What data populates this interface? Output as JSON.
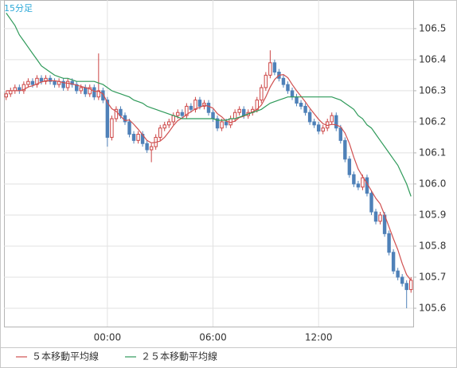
{
  "chart_data": {
    "type": "candlestick",
    "title": "15分足",
    "categories": [
      null,
      null,
      null,
      null,
      null,
      null,
      null,
      null,
      null,
      null,
      null,
      null,
      null,
      null,
      null,
      null,
      null,
      null,
      null,
      null,
      null,
      null,
      null,
      "00:00",
      null,
      null,
      null,
      null,
      null,
      null,
      null,
      null,
      null,
      null,
      null,
      null,
      null,
      null,
      null,
      null,
      null,
      null,
      null,
      null,
      null,
      null,
      null,
      "06:00",
      null,
      null,
      null,
      null,
      null,
      null,
      null,
      null,
      null,
      null,
      null,
      null,
      null,
      null,
      null,
      null,
      null,
      null,
      null,
      null,
      null,
      null,
      null,
      "12:00",
      null,
      null,
      null,
      null,
      null,
      null,
      null,
      null,
      null,
      null,
      null,
      null,
      null,
      null,
      null,
      null,
      null,
      null,
      null,
      null,
      null
    ],
    "open": [
      106.28,
      106.29,
      106.3,
      106.31,
      106.3,
      106.32,
      106.33,
      106.32,
      106.34,
      106.33,
      106.34,
      106.33,
      106.32,
      106.33,
      106.31,
      106.33,
      106.32,
      106.3,
      106.31,
      106.29,
      106.31,
      106.28,
      106.3,
      106.27,
      106.15,
      106.21,
      106.24,
      106.22,
      106.2,
      106.16,
      106.14,
      106.16,
      106.13,
      106.11,
      106.12,
      106.15,
      106.18,
      106.19,
      106.2,
      106.22,
      106.23,
      106.22,
      106.25,
      106.24,
      106.27,
      106.25,
      106.26,
      106.23,
      106.21,
      106.18,
      106.2,
      106.19,
      106.21,
      106.23,
      106.24,
      106.22,
      106.23,
      106.24,
      106.27,
      106.31,
      106.35,
      106.39,
      106.36,
      106.34,
      106.32,
      106.3,
      106.28,
      106.26,
      106.25,
      106.23,
      106.2,
      106.19,
      106.17,
      106.18,
      106.2,
      106.22,
      106.18,
      106.14,
      106.08,
      106.03,
      106.0,
      105.99,
      106.02,
      105.97,
      105.91,
      105.88,
      105.9,
      105.84,
      105.78,
      105.72,
      105.7,
      105.68,
      105.66
    ],
    "high": [
      106.3,
      106.31,
      106.32,
      106.32,
      106.33,
      106.34,
      106.34,
      106.35,
      106.35,
      106.35,
      106.35,
      106.34,
      106.34,
      106.34,
      106.34,
      106.34,
      106.33,
      106.32,
      106.32,
      106.32,
      106.32,
      106.42,
      106.31,
      106.28,
      106.22,
      106.25,
      106.25,
      106.23,
      106.21,
      106.17,
      106.17,
      106.17,
      106.14,
      106.13,
      106.16,
      106.19,
      106.2,
      106.21,
      106.23,
      106.24,
      106.24,
      106.26,
      106.26,
      106.28,
      106.28,
      106.27,
      106.27,
      106.24,
      106.22,
      106.21,
      106.21,
      106.22,
      106.24,
      106.25,
      106.25,
      106.24,
      106.25,
      106.28,
      106.32,
      106.36,
      106.43,
      106.4,
      106.37,
      106.35,
      106.33,
      106.31,
      106.29,
      106.27,
      106.26,
      106.24,
      106.21,
      106.2,
      106.19,
      106.21,
      106.23,
      106.23,
      106.19,
      106.15,
      106.09,
      106.04,
      106.01,
      106.03,
      106.03,
      105.98,
      105.92,
      105.91,
      105.91,
      105.85,
      105.79,
      105.73,
      105.71,
      105.69,
      105.7
    ],
    "low": [
      106.27,
      106.28,
      106.29,
      106.29,
      106.29,
      106.31,
      106.31,
      106.31,
      106.32,
      106.32,
      106.32,
      106.31,
      106.31,
      106.3,
      106.3,
      106.31,
      106.29,
      106.29,
      106.28,
      106.28,
      106.27,
      106.27,
      106.26,
      106.12,
      106.14,
      106.2,
      106.21,
      106.19,
      106.15,
      106.13,
      106.13,
      106.12,
      106.1,
      106.07,
      106.11,
      106.14,
      106.17,
      106.18,
      106.19,
      106.21,
      106.21,
      106.21,
      106.23,
      106.23,
      106.24,
      106.24,
      106.22,
      106.2,
      106.17,
      106.17,
      106.18,
      106.18,
      106.2,
      106.22,
      106.21,
      106.21,
      106.22,
      106.23,
      106.26,
      106.3,
      106.34,
      106.35,
      106.33,
      106.31,
      106.29,
      106.27,
      106.25,
      106.24,
      106.22,
      106.19,
      106.18,
      106.16,
      106.16,
      106.17,
      106.19,
      106.17,
      106.13,
      106.07,
      106.02,
      105.99,
      105.98,
      105.98,
      105.96,
      105.9,
      105.87,
      105.87,
      105.83,
      105.77,
      105.71,
      105.69,
      105.67,
      105.6,
      105.65
    ],
    "close": [
      106.29,
      106.3,
      106.31,
      106.3,
      106.32,
      106.33,
      106.32,
      106.34,
      106.33,
      106.34,
      106.33,
      106.32,
      106.33,
      106.31,
      106.33,
      106.32,
      106.3,
      106.31,
      106.29,
      106.31,
      106.28,
      106.3,
      106.27,
      106.15,
      106.21,
      106.24,
      106.22,
      106.2,
      106.16,
      106.14,
      106.16,
      106.13,
      106.11,
      106.12,
      106.15,
      106.18,
      106.19,
      106.2,
      106.22,
      106.23,
      106.22,
      106.25,
      106.24,
      106.27,
      106.25,
      106.26,
      106.23,
      106.21,
      106.18,
      106.2,
      106.19,
      106.21,
      106.23,
      106.24,
      106.22,
      106.23,
      106.24,
      106.27,
      106.31,
      106.35,
      106.39,
      106.36,
      106.34,
      106.32,
      106.3,
      106.28,
      106.26,
      106.25,
      106.23,
      106.2,
      106.19,
      106.17,
      106.18,
      106.2,
      106.22,
      106.18,
      106.14,
      106.08,
      106.03,
      106.0,
      105.99,
      106.02,
      105.97,
      105.91,
      105.88,
      105.9,
      105.84,
      105.78,
      105.72,
      105.7,
      105.68,
      105.66,
      105.69
    ],
    "up_color": "#cc4444",
    "down_color": "#4f81b8",
    "series": [
      {
        "name": "５本移動平均線",
        "color": "#d05050",
        "values": [
          106.3,
          106.3,
          106.3,
          106.3,
          106.304,
          106.312,
          106.316,
          106.322,
          106.328,
          106.332,
          106.332,
          106.332,
          106.33,
          106.326,
          106.324,
          106.322,
          106.318,
          106.314,
          106.31,
          106.306,
          106.298,
          106.298,
          106.29,
          106.262,
          106.242,
          106.234,
          106.218,
          106.204,
          106.206,
          106.192,
          106.176,
          106.158,
          106.14,
          106.132,
          106.134,
          106.138,
          106.15,
          106.168,
          106.188,
          106.204,
          106.212,
          106.224,
          106.232,
          106.242,
          106.246,
          106.254,
          106.25,
          106.244,
          106.226,
          106.216,
          106.202,
          106.198,
          106.202,
          106.214,
          106.218,
          106.226,
          106.232,
          106.24,
          106.254,
          106.28,
          106.312,
          106.336,
          106.35,
          106.352,
          106.342,
          106.32,
          106.3,
          106.282,
          106.264,
          106.244,
          106.226,
          106.208,
          106.194,
          106.188,
          106.192,
          106.19,
          106.184,
          106.164,
          106.13,
          106.086,
          106.048,
          106.024,
          106.002,
          105.978,
          105.954,
          105.936,
          105.9,
          105.862,
          105.824,
          105.788,
          105.744,
          105.708,
          105.69
        ]
      },
      {
        "name": "２５本移動平均線",
        "color": "#2f9a5a",
        "values": [
          106.55,
          106.53,
          106.51,
          106.48,
          106.46,
          106.44,
          106.42,
          106.4,
          106.38,
          106.37,
          106.36,
          106.35,
          106.345,
          106.34,
          106.34,
          106.335,
          106.33,
          106.33,
          106.33,
          106.33,
          106.33,
          106.325,
          106.32,
          106.31,
          106.3,
          106.295,
          106.29,
          106.285,
          106.28,
          106.27,
          106.265,
          106.26,
          106.25,
          106.245,
          106.24,
          106.235,
          106.23,
          106.225,
          106.22,
          106.215,
          106.21,
          106.21,
          106.21,
          106.21,
          106.21,
          106.21,
          106.21,
          106.21,
          106.205,
          106.205,
          106.205,
          106.21,
          106.21,
          106.215,
          106.22,
          106.225,
          106.23,
          106.235,
          106.24,
          106.25,
          106.26,
          106.265,
          106.27,
          106.275,
          106.28,
          106.28,
          106.28,
          106.28,
          106.28,
          106.28,
          106.28,
          106.28,
          106.28,
          106.28,
          106.28,
          106.275,
          106.27,
          106.26,
          106.25,
          106.24,
          106.22,
          106.21,
          106.19,
          106.18,
          106.16,
          106.14,
          106.12,
          106.1,
          106.08,
          106.06,
          106.03,
          106.0,
          105.96
        ]
      }
    ],
    "ylim": [
      105.541,
      106.592
    ],
    "yticks": [
      105.6,
      105.7,
      105.8,
      105.9,
      {
        "value": 106,
        "label": "106.0"
      },
      106.1,
      106.2,
      106.3,
      106.4,
      106.5
    ],
    "grid": true
  }
}
